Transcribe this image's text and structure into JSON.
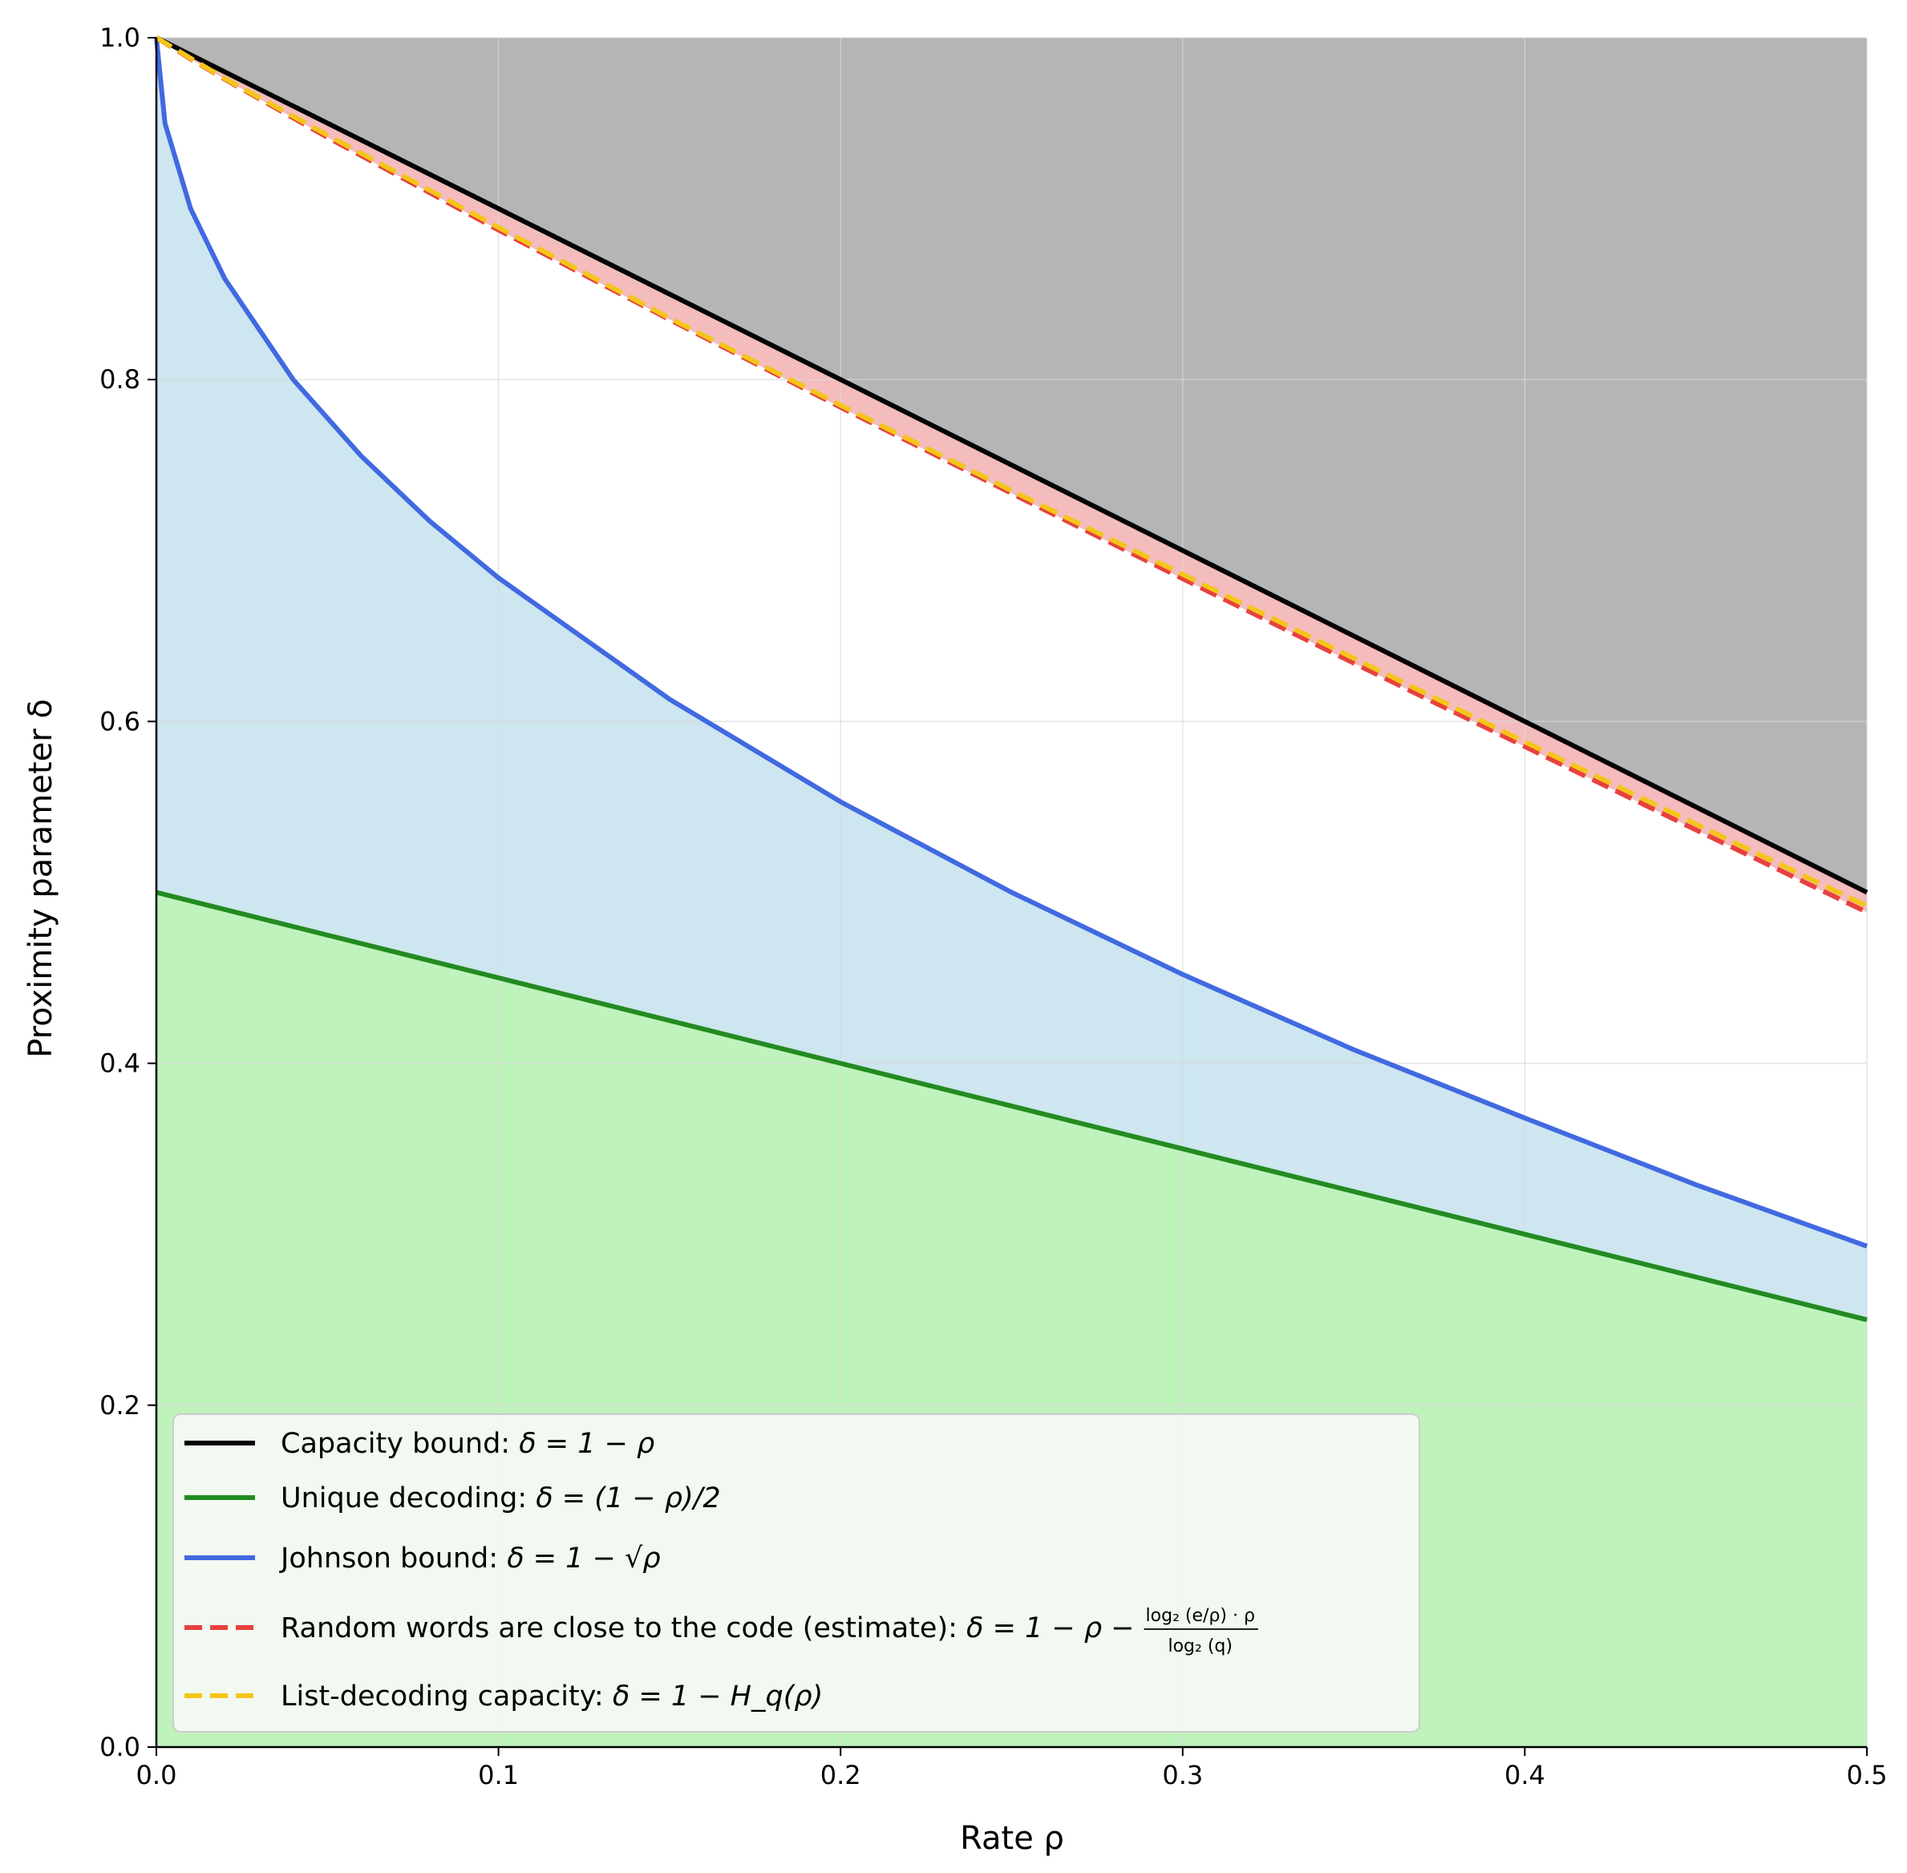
{
  "chart_data": {
    "type": "line",
    "title": "",
    "xlabel": "Rate ρ",
    "ylabel": "Proximity parameter δ",
    "xlim": [
      0.0,
      0.5
    ],
    "ylim": [
      0.0,
      1.0
    ],
    "grid": true,
    "legend_position": "lower-left",
    "x_ticks": [
      "0.0",
      "0.1",
      "0.2",
      "0.3",
      "0.4",
      "0.5"
    ],
    "y_ticks": [
      "0.0",
      "0.2",
      "0.4",
      "0.6",
      "0.8",
      "1.0"
    ],
    "series": [
      {
        "key": "capacity",
        "name": "Capacity bound: δ = 1 − ρ",
        "color": "#000000",
        "style": "solid",
        "x": [
          0.0,
          0.1,
          0.2,
          0.3,
          0.4,
          0.5
        ],
        "y": [
          1.0,
          0.9,
          0.8,
          0.7,
          0.6,
          0.5
        ]
      },
      {
        "key": "unique",
        "name": "Unique decoding: δ = (1 − ρ)/2",
        "color": "#228b22",
        "style": "solid",
        "x": [
          0.0,
          0.1,
          0.2,
          0.3,
          0.4,
          0.5
        ],
        "y": [
          0.5,
          0.45,
          0.4,
          0.35,
          0.3,
          0.25
        ]
      },
      {
        "key": "johnson",
        "name": "Johnson bound: δ = 1 − √ρ",
        "color": "#4169e1",
        "style": "solid",
        "x": [
          0.0,
          0.0025,
          0.01,
          0.02,
          0.04,
          0.06,
          0.08,
          0.1,
          0.15,
          0.2,
          0.25,
          0.3,
          0.35,
          0.4,
          0.45,
          0.5
        ],
        "y": [
          1.0,
          0.95,
          0.9,
          0.859,
          0.8,
          0.755,
          0.717,
          0.684,
          0.613,
          0.553,
          0.5,
          0.452,
          0.408,
          0.368,
          0.329,
          0.293
        ]
      },
      {
        "key": "random",
        "name": "Random words are close to the code (estimate): δ = 1 − ρ − log₂(e/ρ)·ρ / log₂(q)",
        "color": "#e8413e",
        "style": "dashed",
        "x": [
          0.0,
          0.01,
          0.02,
          0.05,
          0.1,
          0.15,
          0.2,
          0.25,
          0.3,
          0.35,
          0.4,
          0.45,
          0.5
        ],
        "y": [
          1.0,
          0.9876,
          0.9757,
          0.9417,
          0.8875,
          0.8351,
          0.7838,
          0.7334,
          0.6835,
          0.6341,
          0.5853,
          0.5366,
          0.4884
        ]
      },
      {
        "key": "listdec",
        "name": "List-decoding capacity: δ = 1 − H_q(ρ)",
        "color": "#f5c518",
        "style": "dashed",
        "x": [
          0.0,
          0.01,
          0.02,
          0.05,
          0.1,
          0.15,
          0.2,
          0.25,
          0.3,
          0.35,
          0.4,
          0.45,
          0.5
        ],
        "y": [
          1.0,
          0.988,
          0.976,
          0.943,
          0.889,
          0.836,
          0.785,
          0.735,
          0.686,
          0.637,
          0.588,
          0.54,
          0.492
        ]
      }
    ],
    "legend": [
      {
        "key": "capacity",
        "prefix": "Capacity bound: ",
        "formula": "δ = 1 − ρ"
      },
      {
        "key": "unique",
        "prefix": "Unique decoding: ",
        "formula": "δ = (1 − ρ)/2"
      },
      {
        "key": "johnson",
        "prefix": "Johnson bound: ",
        "formula": "δ = 1 − √ρ"
      },
      {
        "key": "random",
        "prefix": "Random words are close to the code (estimate): ",
        "formula": "δ = 1 − ρ −",
        "frac_num": "log₂ (e/ρ) · ρ",
        "frac_den": "log₂ (q)"
      },
      {
        "key": "listdec",
        "prefix": "List-decoding capacity: ",
        "formula": "δ = 1 − H_q(ρ)"
      }
    ],
    "fills": [
      {
        "region": "above capacity bound",
        "color": "#b5b5b5"
      },
      {
        "region": "between random-words estimate and capacity bound",
        "color": "#f4bcbc"
      },
      {
        "region": "between unique decoding and Johnson bound",
        "color": "#cde6f0"
      },
      {
        "region": "below unique decoding",
        "color": "#bff3bc"
      }
    ]
  }
}
